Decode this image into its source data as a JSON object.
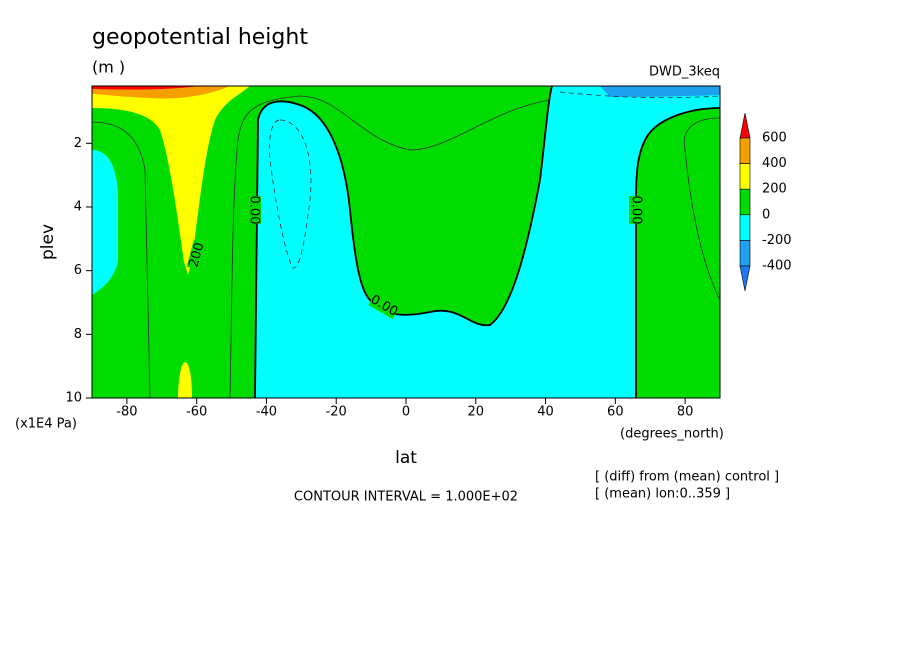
{
  "chart_data": {
    "type": "contour",
    "title": "geopotential height",
    "units": "(m )",
    "dataset": "DWD_3keq",
    "xlabel": "lat",
    "x_unit_label": "(degrees_north)",
    "ylabel": "plev",
    "y_unit_label": "(x1E4 Pa)",
    "xlim": [
      -90,
      90
    ],
    "xticks": [
      -80,
      -60,
      -40,
      -20,
      0,
      20,
      40,
      60,
      80
    ],
    "ylim": [
      10,
      0.2
    ],
    "yticks": [
      2,
      4,
      6,
      8,
      10
    ],
    "levels": [
      600,
      400,
      200,
      0,
      -200,
      -400
    ],
    "level_colors": [
      "#ff0000",
      "#f5a000",
      "#ffff00",
      "#00dc00",
      "#00ffff",
      "#1ea0f0",
      "#1e78f0"
    ],
    "contour_labels": [
      {
        "value": 200,
        "label": "200"
      },
      {
        "value": 0,
        "label": "0.00"
      },
      {
        "value": 0,
        "label": "0.00"
      },
      {
        "value": 0,
        "label": "0.00"
      }
    ],
    "footer": "CONTOUR INTERVAL = 1.000E+02",
    "notes": [
      "[ (diff) from (mean) control ]",
      "[ (mean) lon:0..359 ]"
    ]
  }
}
